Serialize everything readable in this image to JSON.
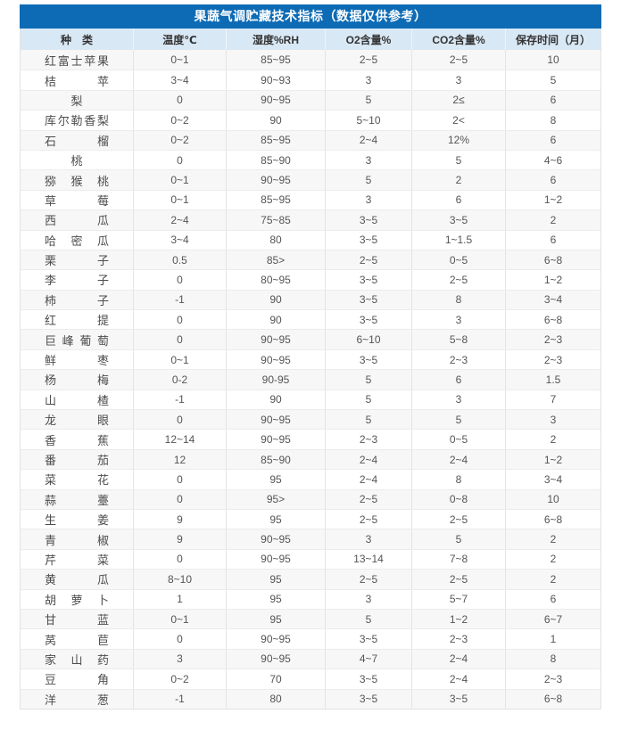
{
  "title": "果蔬气调贮藏技术指标（数据仅供参考）",
  "colors": {
    "title_bar_bg": "#0d6bb5",
    "title_bar_text": "#ffffff",
    "header_row_bg": "#d9e8f5",
    "header_row_text": "#333333",
    "odd_row_bg": "#f7f7f7",
    "even_row_bg": "#ffffff",
    "grid_border": "#e2e2e2",
    "body_text": "#555555"
  },
  "chart_data": {
    "type": "table",
    "title": "果蔬气调贮藏技术指标（数据仅供参考）",
    "columns": [
      "种　类",
      "温度℃",
      "湿度%RH",
      "O2含量%",
      "CO2含量%",
      "保存时间（月）"
    ],
    "rows": [
      [
        "红富士苹果",
        "0~1",
        "85~95",
        "2~5",
        "2~5",
        "10"
      ],
      [
        "桔苹",
        "3~4",
        "90~93",
        "3",
        "3",
        "5"
      ],
      [
        "梨",
        "0",
        "90~95",
        "5",
        "2≤",
        "6"
      ],
      [
        "库尔勒香梨",
        "0~2",
        "90",
        "5~10",
        "2<",
        "8"
      ],
      [
        "石榴",
        "0~2",
        "85~95",
        "2~4",
        "12%",
        "6"
      ],
      [
        "桃",
        "0",
        "85~90",
        "3",
        "5",
        "4~6"
      ],
      [
        "猕猴桃",
        "0~1",
        "90~95",
        "5",
        "2",
        "6"
      ],
      [
        "草莓",
        "0~1",
        "85~95",
        "3",
        "6",
        "1~2"
      ],
      [
        "西瓜",
        "2~4",
        "75~85",
        "3~5",
        "3~5",
        "2"
      ],
      [
        "哈密瓜",
        "3~4",
        "80",
        "3~5",
        "1~1.5",
        "6"
      ],
      [
        "栗子",
        "0.5",
        "85>",
        "2~5",
        "0~5",
        "6~8"
      ],
      [
        "李子",
        "0",
        "80~95",
        "3~5",
        "2~5",
        "1~2"
      ],
      [
        "柿子",
        "-1",
        "90",
        "3~5",
        "8",
        "3~4"
      ],
      [
        "红提",
        "0",
        "90",
        "3~5",
        "3",
        "6~8"
      ],
      [
        "巨峰葡萄",
        "0",
        "90~95",
        "6~10",
        "5~8",
        "2~3"
      ],
      [
        "鲜枣",
        "0~1",
        "90~95",
        "3~5",
        "2~3",
        "2~3"
      ],
      [
        "杨梅",
        "0-2",
        "90-95",
        "5",
        "6",
        "1.5"
      ],
      [
        "山楂",
        "-1",
        "90",
        "5",
        "3",
        "7"
      ],
      [
        "龙眼",
        "0",
        "90~95",
        "5",
        "5",
        "3"
      ],
      [
        "香蕉",
        "12~14",
        "90~95",
        "2~3",
        "0~5",
        "2"
      ],
      [
        "番茄",
        "12",
        "85~90",
        "2~4",
        "2~4",
        "1~2"
      ],
      [
        "菜花",
        "0",
        "95",
        "2~4",
        "8",
        "3~4"
      ],
      [
        "蒜薹",
        "0",
        "95>",
        "2~5",
        "0~8",
        "10"
      ],
      [
        "生姜",
        "9",
        "95",
        "2~5",
        "2~5",
        "6~8"
      ],
      [
        "青椒",
        "9",
        "90~95",
        "3",
        "5",
        "2"
      ],
      [
        "芹菜",
        "0",
        "90~95",
        "13~14",
        "7~8",
        "2"
      ],
      [
        "黄瓜",
        "8~10",
        "95",
        "2~5",
        "2~5",
        "2"
      ],
      [
        "胡萝卜",
        "1",
        "95",
        "3",
        "5~7",
        "6"
      ],
      [
        "甘蓝",
        "0~1",
        "95",
        "5",
        "1~2",
        "6~7"
      ],
      [
        "莴苣",
        "0",
        "90~95",
        "3~5",
        "2~3",
        "1"
      ],
      [
        "家山药",
        "3",
        "90~95",
        "4~7",
        "2~4",
        "8"
      ],
      [
        "豆角",
        "0~2",
        "70",
        "3~5",
        "2~4",
        "2~3"
      ],
      [
        "洋葱",
        "-1",
        "80",
        "3~5",
        "3~5",
        "6~8"
      ]
    ]
  }
}
